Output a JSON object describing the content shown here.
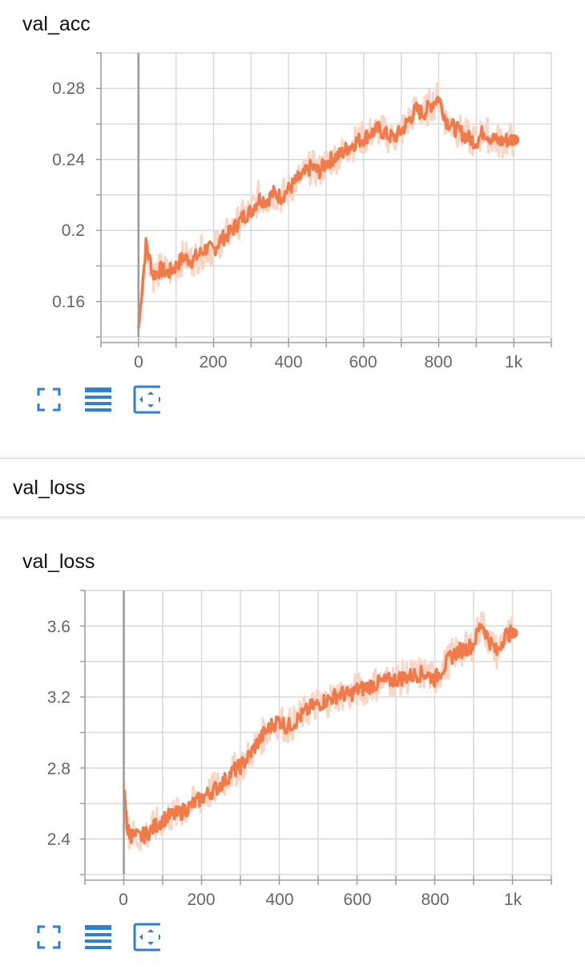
{
  "cards": [
    {
      "title": "val_acc",
      "y_ticks": [
        "0.28",
        "0.24",
        "0.2",
        "0.16"
      ],
      "x_ticks": [
        "0",
        "200",
        "400",
        "600",
        "800",
        "1k"
      ]
    },
    {
      "title": "val_loss",
      "y_ticks": [
        "3.6",
        "3.2",
        "2.8",
        "2.4"
      ],
      "x_ticks": [
        "0",
        "200",
        "400",
        "600",
        "800",
        "1k"
      ]
    }
  ],
  "section": {
    "title": "val_loss"
  },
  "toolbar": {
    "icons": [
      "fullscreen-icon",
      "list-icon",
      "fit-domain-icon"
    ]
  },
  "colors": {
    "series": "#f07a4a",
    "raw": "#fbd5c4",
    "grid": "#d9d9d9",
    "axis": "#9e9e9e",
    "button": "#2f7fd4"
  },
  "chart_data": [
    {
      "type": "line",
      "title": "val_acc",
      "xlim": [
        -100,
        1100
      ],
      "ylim": [
        0.14,
        0.3
      ],
      "y_ticks": [
        0.16,
        0.2,
        0.24,
        0.28
      ],
      "x_ticks": [
        0,
        200,
        400,
        600,
        800,
        1000
      ],
      "series": [
        {
          "x": [
            0,
            20,
            40,
            60,
            80,
            100,
            120,
            140,
            160,
            180,
            200,
            220,
            240,
            260,
            280,
            300,
            320,
            340,
            360,
            380,
            400,
            420,
            440,
            460,
            480,
            500,
            520,
            540,
            560,
            580,
            600,
            620,
            640,
            660,
            680,
            700,
            720,
            740,
            760,
            780,
            800,
            820,
            840,
            860,
            880,
            900,
            920,
            940,
            960,
            980,
            1000
          ],
          "y": [
            0.145,
            0.192,
            0.175,
            0.178,
            0.176,
            0.18,
            0.185,
            0.183,
            0.186,
            0.19,
            0.189,
            0.195,
            0.198,
            0.203,
            0.208,
            0.211,
            0.218,
            0.217,
            0.221,
            0.219,
            0.223,
            0.228,
            0.231,
            0.236,
            0.233,
            0.238,
            0.241,
            0.243,
            0.247,
            0.25,
            0.252,
            0.255,
            0.257,
            0.254,
            0.252,
            0.256,
            0.262,
            0.268,
            0.266,
            0.271,
            0.275,
            0.262,
            0.258,
            0.255,
            0.252,
            0.25,
            0.256,
            0.252,
            0.25,
            0.251,
            0.251
          ]
        }
      ]
    },
    {
      "type": "line",
      "title": "val_loss",
      "xlim": [
        -100,
        1100
      ],
      "ylim": [
        2.2,
        3.8
      ],
      "y_ticks": [
        2.4,
        2.8,
        3.2,
        3.6
      ],
      "x_ticks": [
        0,
        200,
        400,
        600,
        800,
        1000
      ],
      "series": [
        {
          "x": [
            0,
            10,
            20,
            40,
            60,
            80,
            100,
            120,
            140,
            160,
            180,
            200,
            220,
            240,
            260,
            280,
            300,
            320,
            340,
            360,
            380,
            400,
            420,
            440,
            460,
            480,
            500,
            520,
            540,
            560,
            580,
            600,
            620,
            640,
            660,
            680,
            700,
            720,
            740,
            760,
            780,
            800,
            820,
            840,
            860,
            880,
            900,
            920,
            940,
            960,
            980,
            1000
          ],
          "y": [
            2.66,
            2.45,
            2.42,
            2.41,
            2.43,
            2.47,
            2.51,
            2.53,
            2.54,
            2.57,
            2.6,
            2.63,
            2.66,
            2.69,
            2.73,
            2.78,
            2.81,
            2.86,
            2.93,
            2.99,
            3.04,
            3.07,
            3.03,
            3.06,
            3.1,
            3.14,
            3.16,
            3.18,
            3.2,
            3.22,
            3.21,
            3.24,
            3.25,
            3.27,
            3.28,
            3.29,
            3.3,
            3.31,
            3.32,
            3.33,
            3.33,
            3.3,
            3.36,
            3.42,
            3.46,
            3.47,
            3.5,
            3.62,
            3.52,
            3.45,
            3.55,
            3.56
          ]
        }
      ]
    }
  ]
}
